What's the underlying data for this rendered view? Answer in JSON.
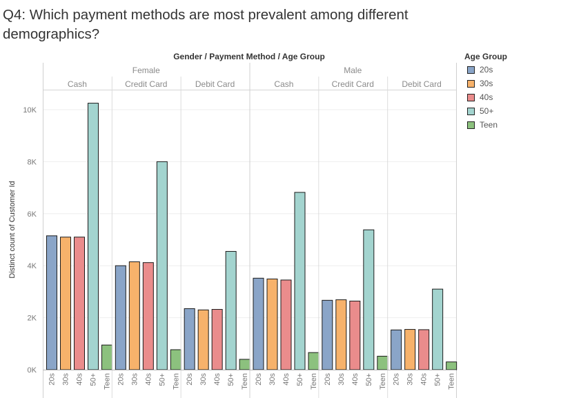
{
  "title": "Q4: Which payment methods are most prevalent among different demographics?",
  "chart_data": {
    "type": "bar",
    "column_header": "Gender  /  Payment Method  /  Age Group",
    "ylabel": "Distinct count of Customer Id",
    "ylim": [
      0,
      10700
    ],
    "yticks": [
      0,
      2000,
      4000,
      6000,
      8000,
      10000
    ],
    "ytick_labels": [
      "0K",
      "2K",
      "4K",
      "6K",
      "8K",
      "10K"
    ],
    "grid": true,
    "legend_placement": "right",
    "age_groups": [
      "20s",
      "30s",
      "40s",
      "50+",
      "Teen"
    ],
    "colors": {
      "20s": "#8aa5c8",
      "30s": "#f7b26b",
      "40s": "#ea8c8c",
      "50+": "#a3d4cf",
      "Teen": "#8cc17e"
    },
    "genders": [
      {
        "name": "Female",
        "methods": [
          {
            "name": "Cash",
            "values": [
              5150,
              5100,
              5100,
              10250,
              950
            ]
          },
          {
            "name": "Credit Card",
            "values": [
              4000,
              4150,
              4120,
              8000,
              770
            ]
          },
          {
            "name": "Debit Card",
            "values": [
              2350,
              2300,
              2320,
              4550,
              400
            ]
          }
        ]
      },
      {
        "name": "Male",
        "methods": [
          {
            "name": "Cash",
            "values": [
              3520,
              3490,
              3450,
              6820,
              660
            ]
          },
          {
            "name": "Credit Card",
            "values": [
              2670,
              2690,
              2640,
              5380,
              520
            ]
          },
          {
            "name": "Debit Card",
            "values": [
              1530,
              1550,
              1540,
              3100,
              300
            ]
          }
        ]
      }
    ]
  },
  "legend": {
    "title": "Age Group",
    "items": [
      "20s",
      "30s",
      "40s",
      "50+",
      "Teen"
    ]
  }
}
